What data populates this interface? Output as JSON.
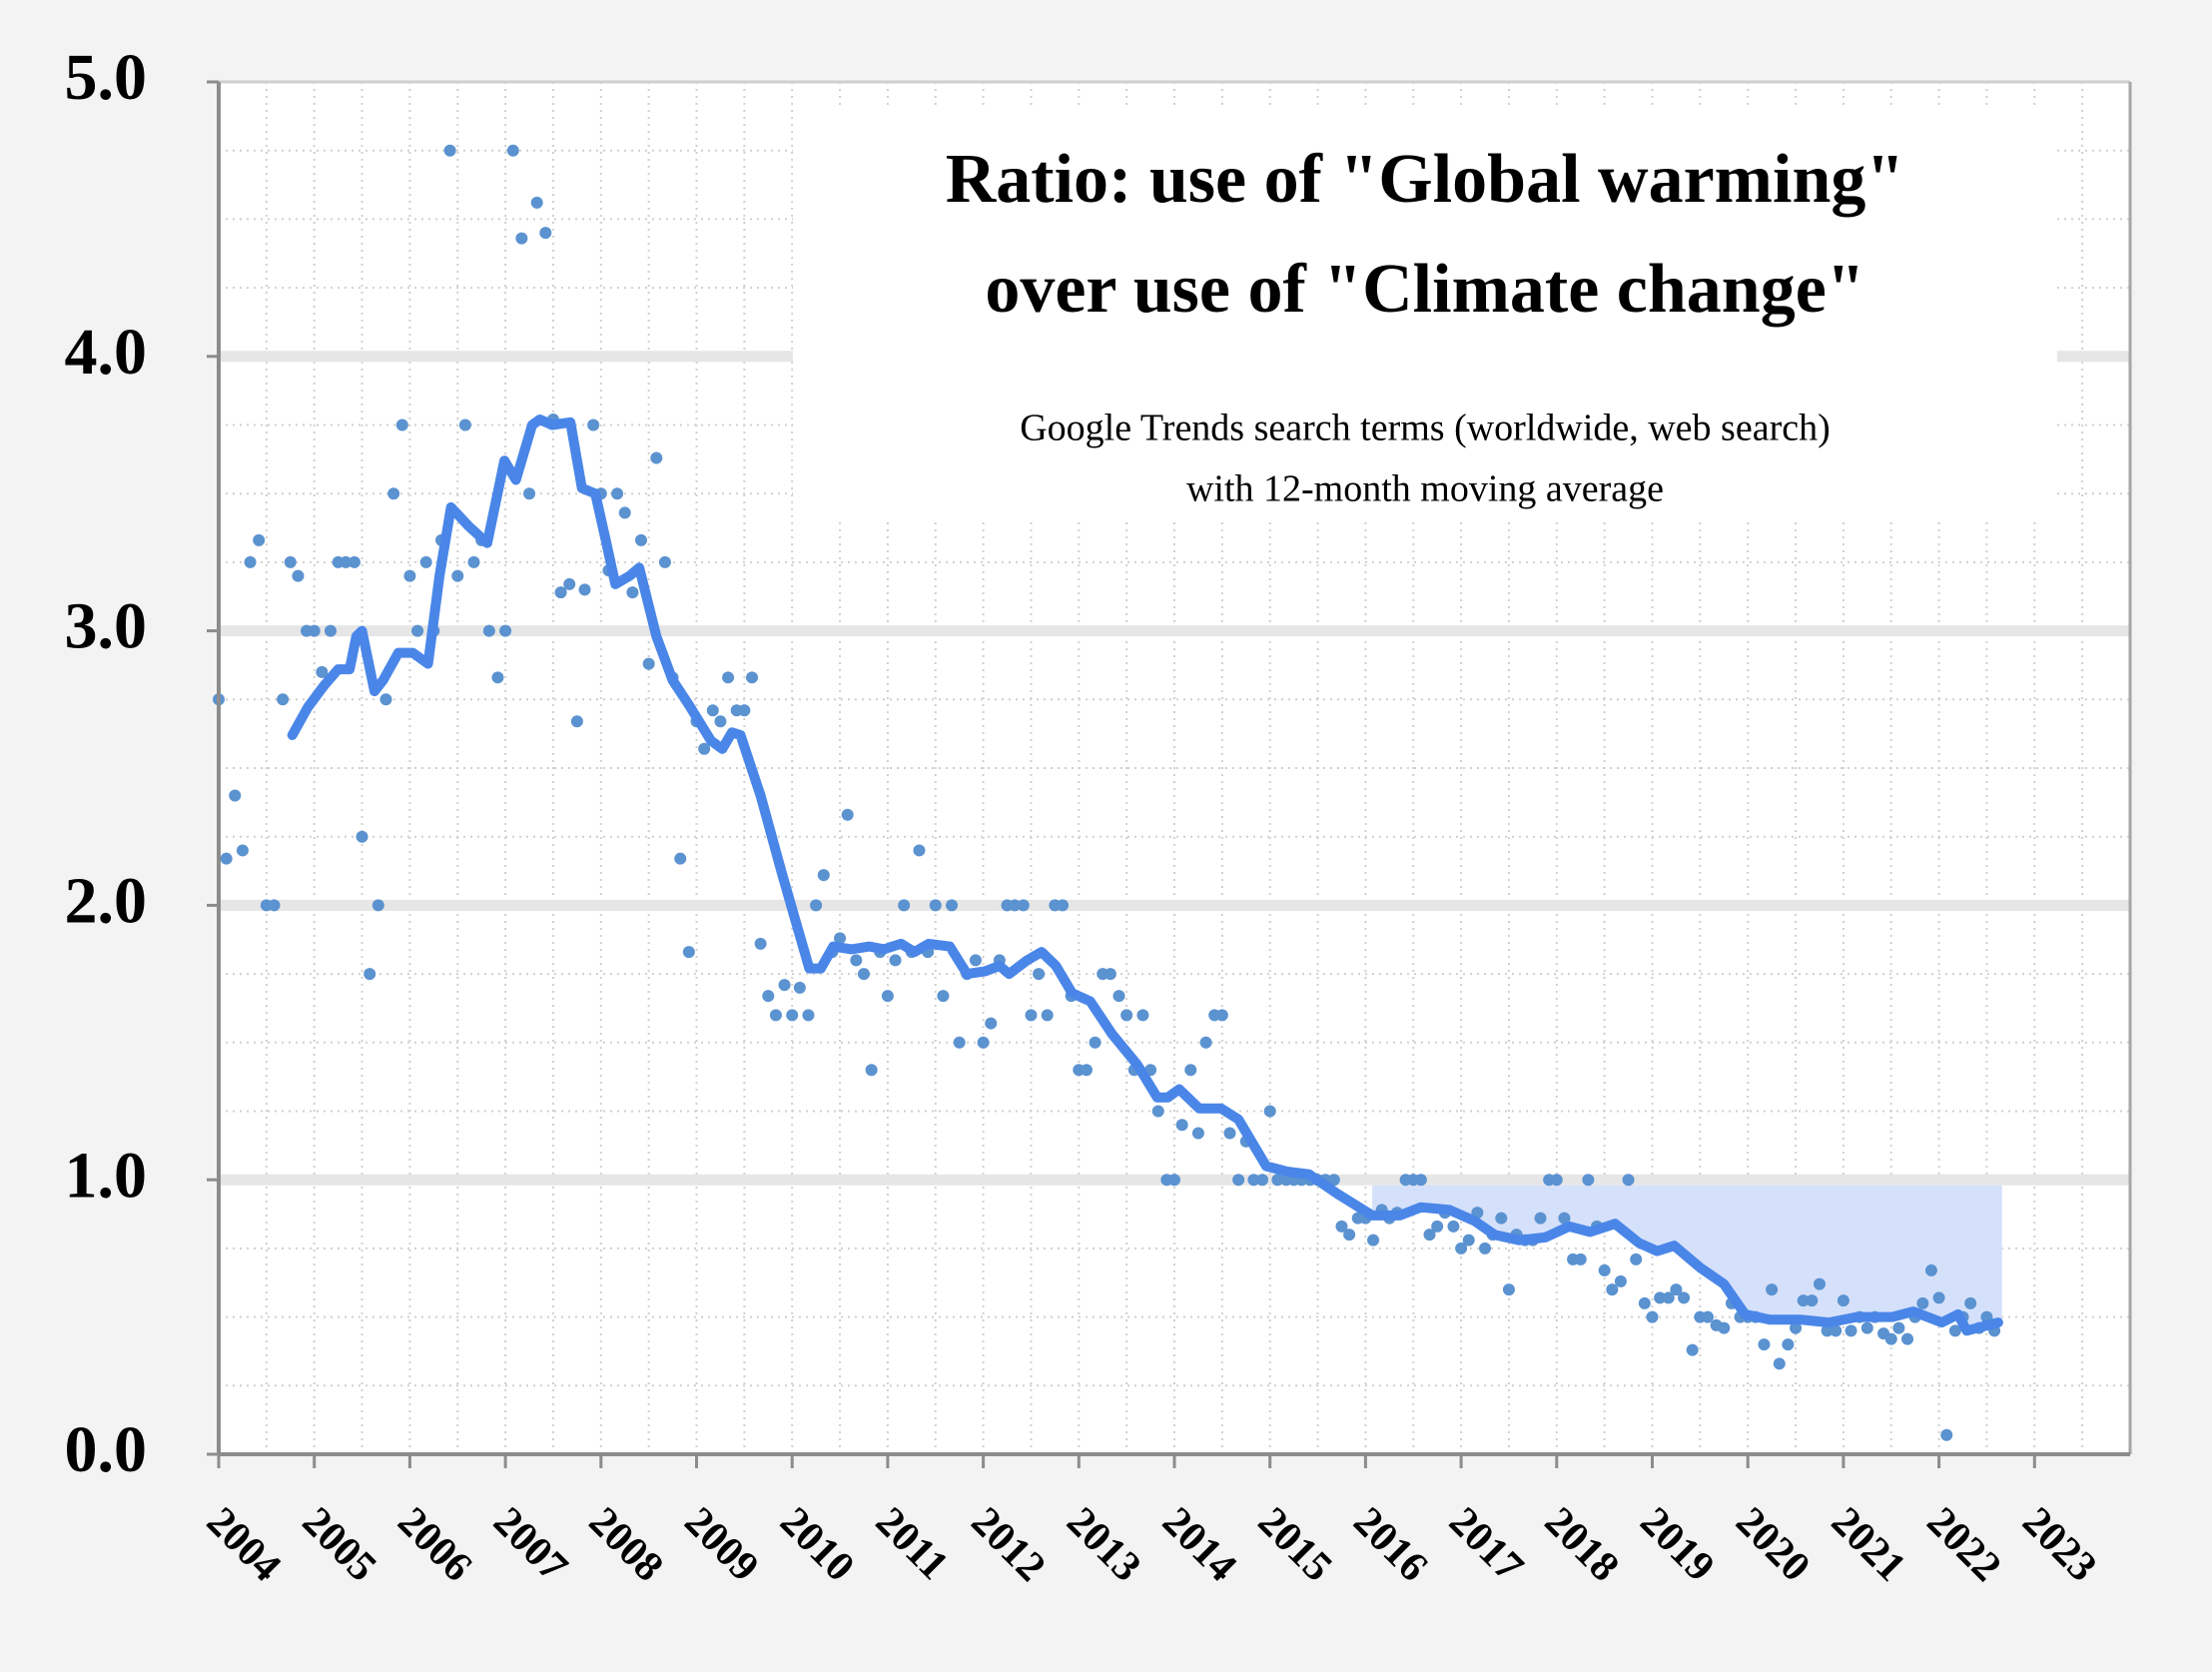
{
  "chart_data": {
    "type": "scatter-line",
    "title": [
      "Ratio: use of \"Global warming\"",
      "over use of \"Climate change\""
    ],
    "subtitle": [
      "Google Trends search terms (worldwide, web search)",
      "with 12-month moving average"
    ],
    "xlim": [
      2004,
      2024
    ],
    "xticks": [
      2004,
      2005,
      2006,
      2007,
      2008,
      2009,
      2010,
      2011,
      2012,
      2013,
      2014,
      2015,
      2016,
      2017,
      2018,
      2019,
      2020,
      2021,
      2022,
      2023
    ],
    "ylim": [
      0,
      5
    ],
    "yticks": [
      {
        "value": 0,
        "label": "0.0"
      },
      {
        "value": 1,
        "label": "1.0"
      },
      {
        "value": 2,
        "label": "2.0"
      },
      {
        "value": 3,
        "label": "3.0"
      },
      {
        "value": 4,
        "label": "4.0"
      },
      {
        "value": 5,
        "label": "5.0"
      }
    ],
    "grid": true,
    "shaded_region": {
      "x": [
        2016.07,
        2022.66
      ],
      "y_top": 0.98,
      "color": "#d5e1fb"
    },
    "series": [
      {
        "kind": "points",
        "color": "#5b92d0",
        "x": [
          2004,
          2004.08,
          2004.17,
          2004.25,
          2004.33,
          2004.42,
          2004.5,
          2004.58,
          2004.67,
          2004.75,
          2004.83,
          2004.92,
          2005,
          2005.08,
          2005.17,
          2005.25,
          2005.33,
          2005.42,
          2005.5,
          2005.58,
          2005.67,
          2005.75,
          2005.83,
          2005.92,
          2006,
          2006.08,
          2006.17,
          2006.25,
          2006.33,
          2006.42,
          2006.5,
          2006.58,
          2006.67,
          2006.75,
          2006.83,
          2006.92,
          2007,
          2007.08,
          2007.17,
          2007.25,
          2007.33,
          2007.42,
          2007.5,
          2007.58,
          2007.67,
          2007.75,
          2007.83,
          2007.92,
          2008,
          2008.08,
          2008.17,
          2008.25,
          2008.33,
          2008.42,
          2008.5,
          2008.58,
          2008.67,
          2008.75,
          2008.83,
          2008.92,
          2009,
          2009.08,
          2009.17,
          2009.25,
          2009.33,
          2009.42,
          2009.5,
          2009.58,
          2009.67,
          2009.75,
          2009.83,
          2009.92,
          2010,
          2010.08,
          2010.17,
          2010.25,
          2010.33,
          2010.42,
          2010.5,
          2010.58,
          2010.67,
          2010.75,
          2010.83,
          2010.92,
          2011,
          2011.08,
          2011.17,
          2011.25,
          2011.33,
          2011.42,
          2011.5,
          2011.58,
          2011.67,
          2011.75,
          2011.83,
          2011.92,
          2012,
          2012.08,
          2012.17,
          2012.25,
          2012.33,
          2012.42,
          2012.5,
          2012.58,
          2012.67,
          2012.75,
          2012.83,
          2012.92,
          2013,
          2013.08,
          2013.17,
          2013.25,
          2013.33,
          2013.42,
          2013.5,
          2013.58,
          2013.67,
          2013.75,
          2013.83,
          2013.92,
          2014,
          2014.08,
          2014.17,
          2014.25,
          2014.33,
          2014.42,
          2014.5,
          2014.58,
          2014.67,
          2014.75,
          2014.83,
          2014.92,
          2015,
          2015.08,
          2015.17,
          2015.25,
          2015.33,
          2015.42,
          2015.5,
          2015.58,
          2015.67,
          2015.75,
          2015.83,
          2015.92,
          2016,
          2016.08,
          2016.17,
          2016.25,
          2016.33,
          2016.42,
          2016.5,
          2016.58,
          2016.67,
          2016.75,
          2016.83,
          2016.92,
          2017,
          2017.08,
          2017.17,
          2017.25,
          2017.33,
          2017.42,
          2017.5,
          2017.58,
          2017.67,
          2017.75,
          2017.83,
          2017.92,
          2018,
          2018.08,
          2018.17,
          2018.25,
          2018.33,
          2018.42,
          2018.5,
          2018.58,
          2018.67,
          2018.75,
          2018.83,
          2018.92,
          2019,
          2019.08,
          2019.17,
          2019.25,
          2019.33,
          2019.42,
          2019.5,
          2019.58,
          2019.67,
          2019.75,
          2019.83,
          2019.92,
          2020,
          2020.08,
          2020.17,
          2020.25,
          2020.33,
          2020.42,
          2020.5,
          2020.58,
          2020.67,
          2020.75,
          2020.83,
          2020.92,
          2021,
          2021.08,
          2021.17,
          2021.25,
          2021.33,
          2021.42,
          2021.5,
          2021.58,
          2021.67,
          2021.75,
          2021.83,
          2021.92,
          2022,
          2022.08,
          2022.17,
          2022.25,
          2022.33,
          2022.42,
          2022.5,
          2022.58
        ],
        "values": [
          2.75,
          2.17,
          2.4,
          2.2,
          3.25,
          3.33,
          2.0,
          2.0,
          2.75,
          3.25,
          3.2,
          3.0,
          3.0,
          2.85,
          3.0,
          3.25,
          3.25,
          3.25,
          2.25,
          1.75,
          2.0,
          2.75,
          3.5,
          3.75,
          3.2,
          3.0,
          3.25,
          3.0,
          3.33,
          4.75,
          3.2,
          3.75,
          3.25,
          3.33,
          3.0,
          2.83,
          3.0,
          4.75,
          4.43,
          3.5,
          4.56,
          4.45,
          3.77,
          3.14,
          3.17,
          2.67,
          3.15,
          3.75,
          3.5,
          3.22,
          3.5,
          3.43,
          3.14,
          3.33,
          2.88,
          3.63,
          3.25,
          2.83,
          2.17,
          1.83,
          2.67,
          2.57,
          2.71,
          2.67,
          2.83,
          2.71,
          2.71,
          2.83,
          1.86,
          1.67,
          1.6,
          1.71,
          1.6,
          1.7,
          1.6,
          2.0,
          2.11,
          1.83,
          1.88,
          2.33,
          1.8,
          1.75,
          1.4,
          1.83,
          1.67,
          1.8,
          2.0,
          1.83,
          2.2,
          1.83,
          2.0,
          1.67,
          2.0,
          1.5,
          1.75,
          1.8,
          1.5,
          1.57,
          1.8,
          2.0,
          2.0,
          2.0,
          1.6,
          1.75,
          1.6,
          2.0,
          2.0,
          1.67,
          1.4,
          1.4,
          1.5,
          1.75,
          1.75,
          1.67,
          1.6,
          1.4,
          1.6,
          1.4,
          1.25,
          1.0,
          1.0,
          1.2,
          1.4,
          1.17,
          1.5,
          1.6,
          1.6,
          1.17,
          1.0,
          1.14,
          1.0,
          1.0,
          1.25,
          1.0,
          1.0,
          1.0,
          1.0,
          1.0,
          1.0,
          1.0,
          1.0,
          0.83,
          0.8,
          0.86,
          0.86,
          0.78,
          0.89,
          0.86,
          0.88,
          1.0,
          1.0,
          1.0,
          0.8,
          0.83,
          0.88,
          0.83,
          0.75,
          0.78,
          0.88,
          0.75,
          0.8,
          0.86,
          0.6,
          0.8,
          0.78,
          0.78,
          0.86,
          1.0,
          1.0,
          0.86,
          0.71,
          0.71,
          1.0,
          0.83,
          0.67,
          0.6,
          0.63,
          1.0,
          0.71,
          0.55,
          0.5,
          0.57,
          0.57,
          0.6,
          0.57,
          0.38,
          0.5,
          0.5,
          0.47,
          0.46,
          0.55,
          0.5,
          0.5,
          0.5,
          0.4,
          0.6,
          0.33,
          0.4,
          0.46,
          0.56,
          0.56,
          0.62,
          0.45,
          0.45,
          0.56,
          0.45,
          0.5,
          0.46,
          0.5,
          0.44,
          0.42,
          0.46,
          0.42,
          0.5,
          0.55,
          0.67,
          0.57,
          0.07,
          0.45,
          0.5,
          0.55,
          0.46,
          0.5,
          0.45
        ]
      },
      {
        "kind": "line",
        "color": "#4a86e8",
        "x": [
          2004.77,
          2004.93,
          2005.1,
          2005.25,
          2005.37,
          2005.44,
          2005.5,
          2005.63,
          2005.72,
          2005.88,
          2006.03,
          2006.19,
          2006.31,
          2006.43,
          2006.62,
          2006.81,
          2006.99,
          2007.11,
          2007.28,
          2007.36,
          2007.49,
          2007.68,
          2007.8,
          2007.94,
          2008.05,
          2008.15,
          2008.3,
          2008.4,
          2008.58,
          2008.75,
          2008.92,
          2009.15,
          2009.27,
          2009.37,
          2009.46,
          2009.67,
          2009.89,
          2010.03,
          2010.18,
          2010.3,
          2010.43,
          2010.62,
          2010.81,
          2010.96,
          2011.14,
          2011.28,
          2011.43,
          2011.65,
          2011.83,
          2012.02,
          2012.17,
          2012.27,
          2012.46,
          2012.61,
          2012.76,
          2012.93,
          2013.12,
          2013.35,
          2013.61,
          2013.82,
          2013.93,
          2014.05,
          2014.26,
          2014.49,
          2014.67,
          2014.96,
          2015.18,
          2015.41,
          2015.7,
          2016.07,
          2016.36,
          2016.58,
          2016.88,
          2017.14,
          2017.35,
          2017.61,
          2017.88,
          2018.13,
          2018.35,
          2018.61,
          2018.86,
          2019.05,
          2019.23,
          2019.5,
          2019.75,
          2019.97,
          2020.23,
          2020.56,
          2020.85,
          2021.14,
          2021.51,
          2021.73,
          2022.03,
          2022.2,
          2022.29,
          2022.62
        ],
        "values": [
          2.62,
          2.72,
          2.8,
          2.86,
          2.86,
          2.98,
          3.0,
          2.78,
          2.82,
          2.92,
          2.92,
          2.88,
          3.2,
          3.45,
          3.38,
          3.32,
          3.62,
          3.55,
          3.75,
          3.77,
          3.75,
          3.76,
          3.52,
          3.5,
          3.33,
          3.17,
          3.2,
          3.23,
          2.98,
          2.82,
          2.73,
          2.6,
          2.57,
          2.63,
          2.62,
          2.4,
          2.12,
          1.95,
          1.77,
          1.77,
          1.85,
          1.84,
          1.85,
          1.84,
          1.86,
          1.83,
          1.86,
          1.85,
          1.75,
          1.76,
          1.78,
          1.75,
          1.8,
          1.83,
          1.78,
          1.68,
          1.65,
          1.53,
          1.42,
          1.3,
          1.3,
          1.33,
          1.26,
          1.26,
          1.22,
          1.05,
          1.03,
          1.02,
          0.95,
          0.87,
          0.87,
          0.9,
          0.89,
          0.85,
          0.8,
          0.78,
          0.79,
          0.83,
          0.81,
          0.84,
          0.77,
          0.74,
          0.76,
          0.68,
          0.62,
          0.51,
          0.49,
          0.49,
          0.48,
          0.5,
          0.5,
          0.52,
          0.48,
          0.51,
          0.45,
          0.48
        ]
      }
    ]
  }
}
